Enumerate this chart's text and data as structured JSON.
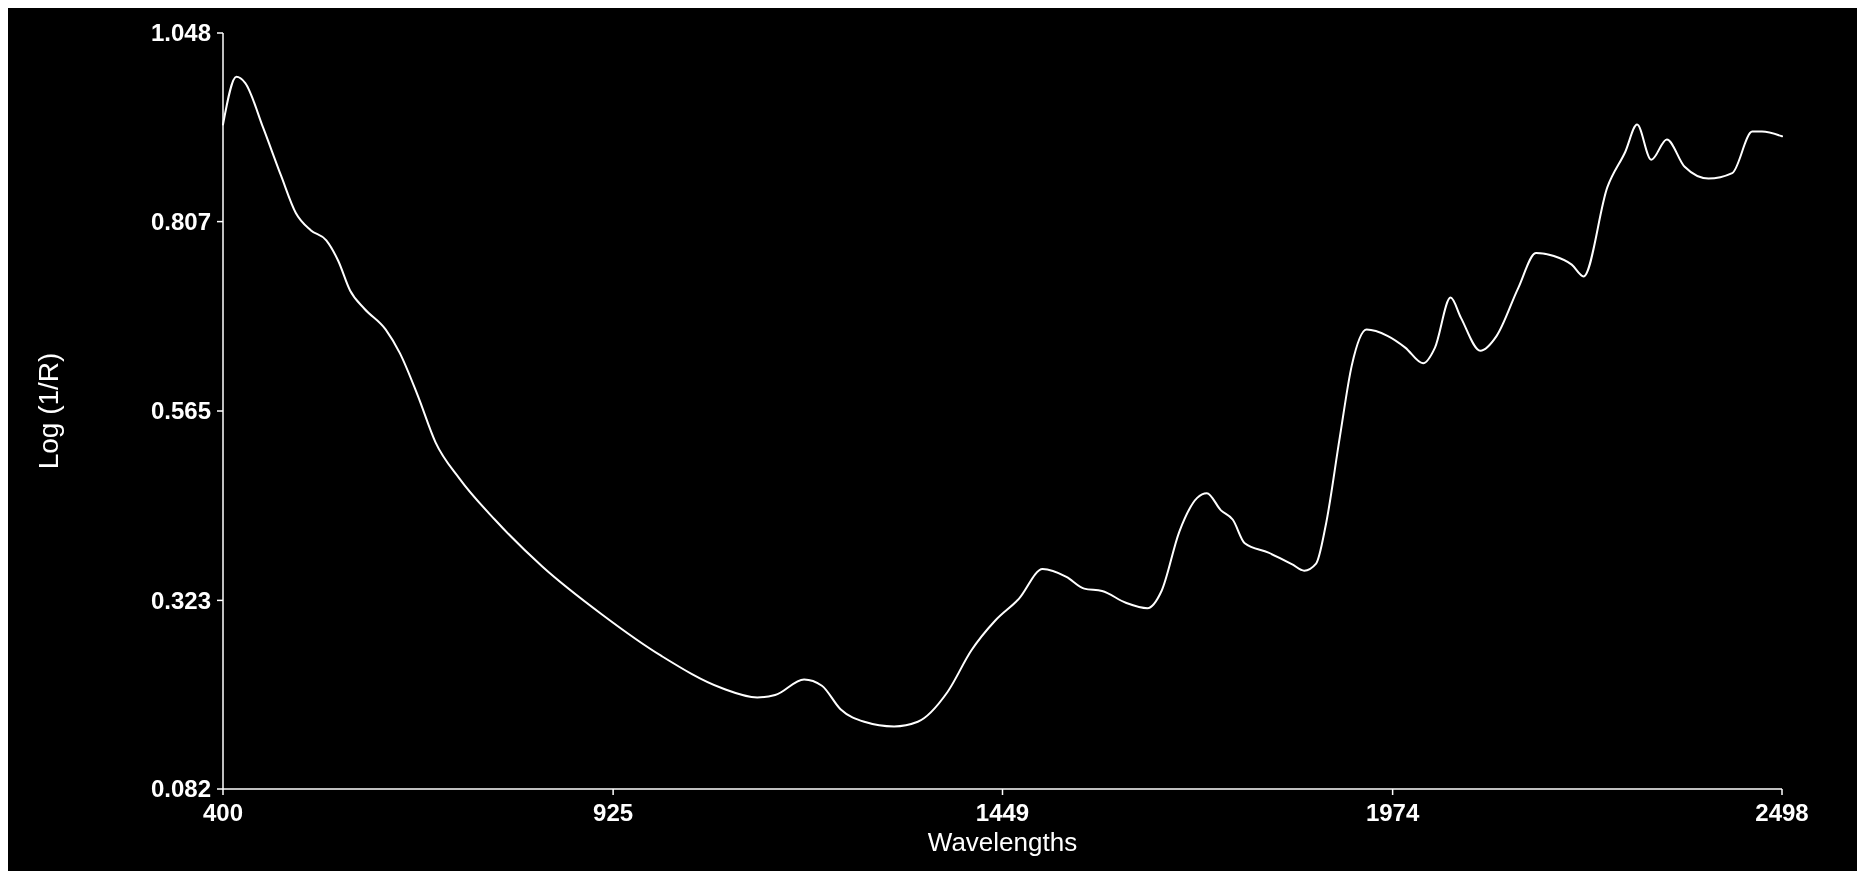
{
  "chart_data": {
    "type": "line",
    "xlabel": "Wavelengths",
    "ylabel": "Log (1/R)",
    "xlim": [
      400,
      2498
    ],
    "ylim": [
      0.082,
      1.048
    ],
    "xticks": [
      400,
      925,
      1449,
      1974,
      2498
    ],
    "yticks": [
      0.082,
      0.323,
      0.565,
      0.807,
      1.048
    ],
    "grid": false,
    "series": [
      {
        "color": "#ffffff",
        "x": [
          400,
          418,
          430,
          454,
          478,
          498,
          518,
          539,
          555,
          571,
          590,
          619,
          638,
          662,
          686,
          718,
          766,
          830,
          910,
          990,
          1071,
          1119,
          1143,
          1182,
          1206,
          1231,
          1263,
          1303,
          1335,
          1375,
          1407,
          1439,
          1471,
          1503,
          1535,
          1559,
          1583,
          1615,
          1644,
          1663,
          1687,
          1711,
          1724,
          1743,
          1759,
          1775,
          1807,
          1839,
          1855,
          1871,
          1884,
          1903,
          1919,
          1939,
          1967,
          1991,
          2015,
          2031,
          2052,
          2066,
          2092,
          2114,
          2143,
          2167,
          2191,
          2215,
          2231,
          2263,
          2287,
          2303,
          2322,
          2343,
          2367,
          2399,
          2431,
          2458,
          2471,
          2498
        ],
        "values": [
          0.931,
          0.992,
          0.984,
          0.927,
          0.866,
          0.818,
          0.796,
          0.783,
          0.757,
          0.719,
          0.696,
          0.669,
          0.639,
          0.585,
          0.525,
          0.479,
          0.426,
          0.366,
          0.305,
          0.252,
          0.211,
          0.199,
          0.202,
          0.222,
          0.214,
          0.184,
          0.168,
          0.162,
          0.168,
          0.206,
          0.259,
          0.297,
          0.325,
          0.363,
          0.353,
          0.338,
          0.335,
          0.32,
          0.313,
          0.335,
          0.411,
          0.454,
          0.46,
          0.438,
          0.426,
          0.396,
          0.384,
          0.369,
          0.361,
          0.37,
          0.419,
          0.532,
          0.623,
          0.669,
          0.661,
          0.646,
          0.626,
          0.646,
          0.71,
          0.684,
          0.642,
          0.661,
          0.722,
          0.767,
          0.763,
          0.752,
          0.737,
          0.851,
          0.896,
          0.931,
          0.886,
          0.912,
          0.877,
          0.862,
          0.869,
          0.922,
          0.922,
          0.916
        ]
      }
    ]
  }
}
